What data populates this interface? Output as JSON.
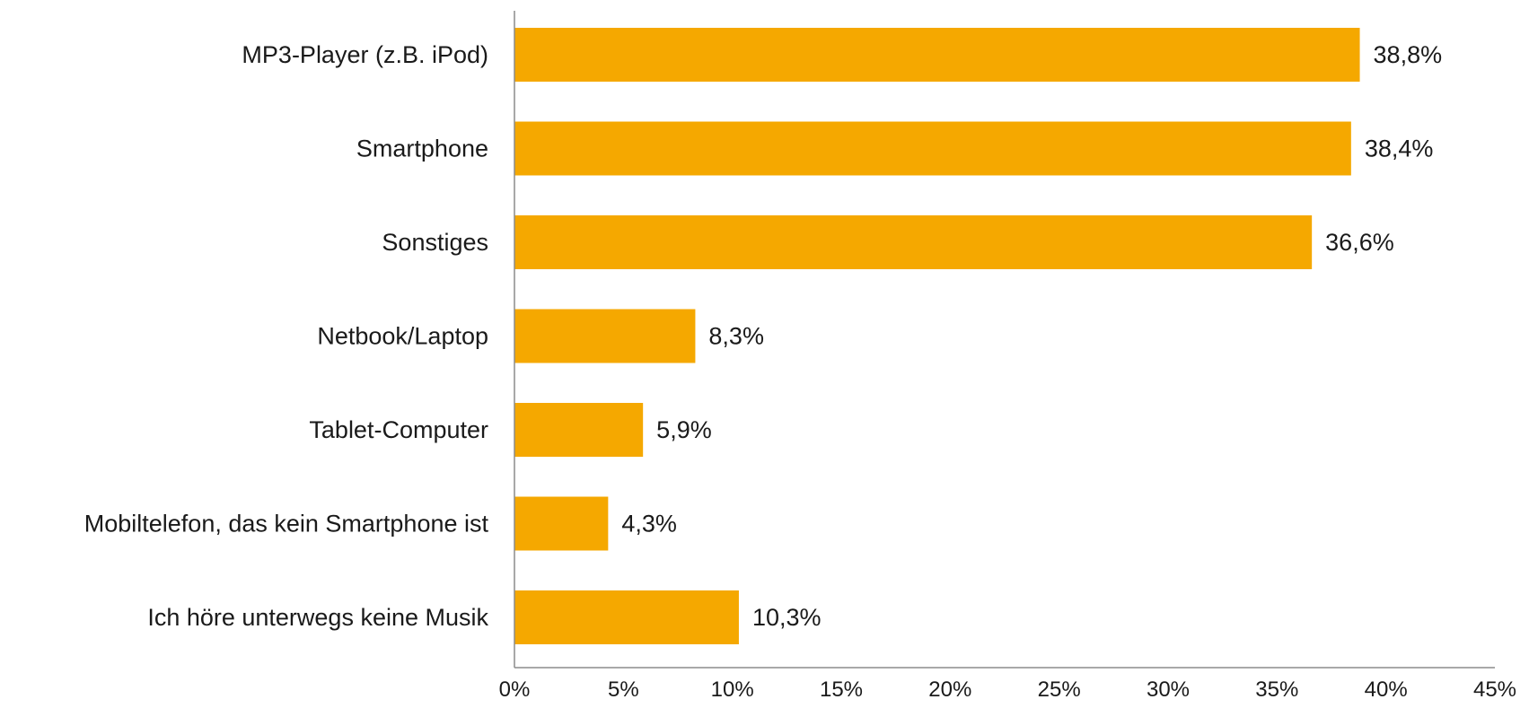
{
  "chart_data": {
    "type": "bar",
    "orientation": "horizontal",
    "categories": [
      "MP3-Player (z.B. iPod)",
      "Smartphone",
      "Sonstiges",
      "Netbook/Laptop",
      "Tablet-Computer",
      "Mobiltelefon, das kein Smartphone ist",
      "Ich höre unterwegs keine Musik"
    ],
    "values": [
      38.8,
      38.4,
      36.6,
      8.3,
      5.9,
      4.3,
      10.3
    ],
    "value_labels": [
      "38,8%",
      "38,4%",
      "36,6%",
      "8,3%",
      "5,9%",
      "4,3%",
      "10,3%"
    ],
    "x_ticks": [
      "0%",
      "5%",
      "10%",
      "15%",
      "20%",
      "25%",
      "30%",
      "35%",
      "40%",
      "45%"
    ],
    "xlim": [
      0,
      45
    ],
    "bar_color": "#F5A800",
    "axis_color": "#8c8c8c",
    "grid": false,
    "legend": "none",
    "title": "",
    "xlabel": "",
    "ylabel": ""
  }
}
